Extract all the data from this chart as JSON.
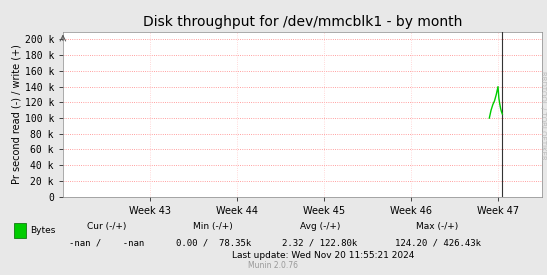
{
  "title": "Disk throughput for /dev/mmcblk1 - by month",
  "ylabel": "Pr second read (-) / write (+)",
  "background_color": "#e8e8e8",
  "plot_bg_color": "#ffffff",
  "grid_color_major": "#ff8080",
  "grid_color_minor": "#ffcccc",
  "line_color": "#00cc00",
  "vline_color": "#333333",
  "yticks": [
    0,
    20000,
    40000,
    60000,
    80000,
    100000,
    120000,
    140000,
    160000,
    180000,
    200000
  ],
  "ytick_labels": [
    "0",
    "20 k",
    "40 k",
    "60 k",
    "80 k",
    "100 k",
    "120 k",
    "140 k",
    "160 k",
    "180 k",
    "200 k"
  ],
  "ylim": [
    0,
    210000
  ],
  "xlim_weeks": [
    42.0,
    47.5
  ],
  "week_ticks": [
    43,
    44,
    45,
    46,
    47
  ],
  "week_labels": [
    "Week 43",
    "Week 44",
    "Week 45",
    "Week 46",
    "Week 47"
  ],
  "vline_x": 47.05,
  "spike_data": [
    [
      46.9,
      100000
    ],
    [
      46.92,
      110000
    ],
    [
      46.94,
      117000
    ],
    [
      46.96,
      122000
    ],
    [
      46.98,
      130000
    ],
    [
      47.0,
      140000
    ],
    [
      47.01,
      125000
    ],
    [
      47.02,
      118000
    ],
    [
      47.03,
      112000
    ],
    [
      47.04,
      108000
    ],
    [
      47.05,
      105000
    ]
  ],
  "legend_label": "Bytes",
  "legend_color": "#00cc00",
  "footer_col_headers": [
    "Cur (-/+)",
    "Min (-/+)",
    "Avg (-/+)",
    "Max (-/+)"
  ],
  "footer_col_values": [
    "-nan /    -nan",
    "0.00 /  78.35k",
    "2.32 / 122.80k",
    "124.20 / 426.43k"
  ],
  "last_update": "Last update: Wed Nov 20 11:55:21 2024",
  "munin_version": "Munin 2.0.76",
  "rrdtool_label": "RRDTOOL / TOBI OETIKER",
  "title_fontsize": 10,
  "axis_label_fontsize": 7,
  "footer_fontsize": 6.5,
  "tick_fontsize": 7,
  "munin_fontsize": 5.5,
  "rrdtool_fontsize": 5
}
